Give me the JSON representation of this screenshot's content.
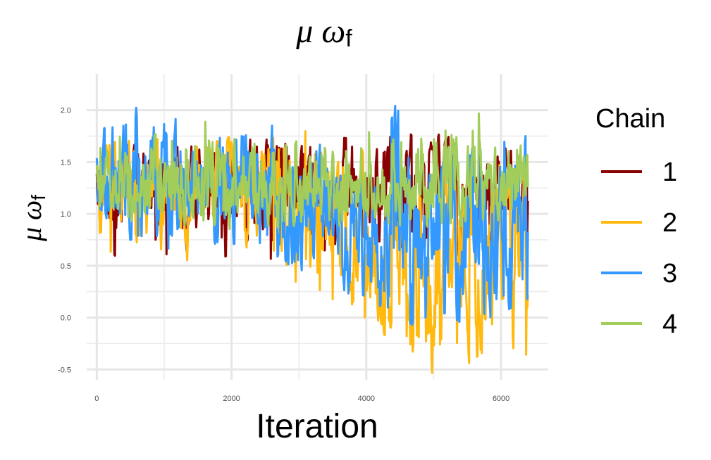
{
  "chart_data": {
    "type": "line",
    "title": {
      "main": "μ ω",
      "sub": "f"
    },
    "xlabel": "Iteration",
    "ylabel": {
      "main": "μ ω",
      "sub": "f"
    },
    "xlim": [
      -150,
      6700
    ],
    "ylim": [
      -0.6,
      2.35
    ],
    "x_ticks": [
      {
        "value": 0,
        "label": "0"
      },
      {
        "value": 2000,
        "label": "2000"
      },
      {
        "value": 4000,
        "label": "4000"
      },
      {
        "value": 6000,
        "label": "6000"
      }
    ],
    "y_ticks": [
      {
        "value": -0.5,
        "label": "-0.5"
      },
      {
        "value": 0.0,
        "label": "0.0"
      },
      {
        "value": 0.5,
        "label": "0.5"
      },
      {
        "value": 1.0,
        "label": "1.0"
      },
      {
        "value": 1.5,
        "label": "1.5"
      },
      {
        "value": 2.0,
        "label": "2.0"
      }
    ],
    "grid": true,
    "legend": {
      "title": "Chain",
      "position": "right"
    },
    "series": [
      {
        "name": "1",
        "color": "#8b0000",
        "x": [
          0,
          200,
          400,
          600,
          800,
          1000,
          1200,
          1400,
          1600,
          1800,
          2000,
          2200,
          2400,
          2600,
          2800,
          3000,
          3200,
          3400,
          3600,
          3800,
          4000,
          4200,
          4400,
          4600,
          4800,
          5000,
          5200,
          5400,
          5600,
          5800,
          6000,
          6200,
          6400
        ],
        "mid": [
          1.25,
          1.24,
          1.23,
          1.24,
          1.22,
          1.25,
          1.23,
          1.24,
          1.25,
          1.23,
          1.24,
          1.22,
          1.23,
          1.24,
          1.25,
          1.24,
          1.23,
          1.22,
          1.24,
          1.25,
          1.23,
          1.24,
          1.25,
          1.24,
          1.26,
          1.25,
          1.24,
          1.25,
          1.26,
          1.24,
          1.25,
          1.24,
          1.25
        ],
        "lo": [
          0.85,
          0.45,
          0.6,
          0.55,
          0.65,
          0.6,
          0.25,
          0.6,
          0.65,
          0.55,
          0.62,
          0.6,
          0.62,
          0.55,
          0.62,
          0.6,
          0.62,
          0.65,
          0.55,
          0.5,
          0.6,
          0.65,
          0.62,
          0.6,
          0.62,
          0.6,
          0.62,
          0.6,
          0.62,
          0.6,
          0.62,
          0.65,
          0.6
        ],
        "hi": [
          1.7,
          1.72,
          1.7,
          1.72,
          1.72,
          1.7,
          1.7,
          1.68,
          1.72,
          1.7,
          1.72,
          1.7,
          1.74,
          1.7,
          1.72,
          1.7,
          1.72,
          1.72,
          1.74,
          1.72,
          1.72,
          1.74,
          1.76,
          1.76,
          1.78,
          1.78,
          1.74,
          1.76,
          1.78,
          1.76,
          1.76,
          1.78,
          1.8
        ]
      },
      {
        "name": "2",
        "color": "#ffb90f",
        "x": [
          0,
          200,
          400,
          600,
          800,
          1000,
          1200,
          1400,
          1600,
          1800,
          2000,
          2200,
          2400,
          2600,
          2800,
          3000,
          3200,
          3400,
          3600,
          3800,
          4000,
          4200,
          4400,
          4600,
          4800,
          5000,
          5200,
          5400,
          5600,
          5800,
          6000,
          6200,
          6400
        ],
        "mid": [
          1.25,
          1.22,
          1.2,
          1.2,
          1.18,
          1.2,
          1.18,
          1.2,
          1.2,
          1.18,
          1.2,
          1.18,
          1.15,
          1.1,
          1.05,
          1.0,
          0.95,
          0.9,
          0.85,
          0.75,
          0.65,
          0.55,
          0.55,
          0.5,
          0.45,
          0.45,
          0.5,
          0.55,
          0.5,
          0.5,
          0.55,
          0.55,
          0.55
        ],
        "lo": [
          0.55,
          0.6,
          0.6,
          0.55,
          0.55,
          0.6,
          0.28,
          0.6,
          0.55,
          0.55,
          0.6,
          0.58,
          0.5,
          0.38,
          0.35,
          0.2,
          0.25,
          0.2,
          0.1,
          -0.05,
          -0.1,
          -0.15,
          -0.2,
          -0.35,
          -0.4,
          -0.55,
          -0.45,
          -0.5,
          -0.4,
          -0.3,
          -0.25,
          -0.3,
          -0.4
        ],
        "hi": [
          1.7,
          1.72,
          1.72,
          1.7,
          1.72,
          1.72,
          1.7,
          1.72,
          1.72,
          1.7,
          1.75,
          1.72,
          1.72,
          1.75,
          1.8,
          1.78,
          1.98,
          1.75,
          1.7,
          1.65,
          1.6,
          1.6,
          1.55,
          1.55,
          1.55,
          1.6,
          1.55,
          1.55,
          1.55,
          1.55,
          1.55,
          1.55,
          1.55
        ]
      },
      {
        "name": "3",
        "color": "#3399ff",
        "x": [
          0,
          200,
          400,
          600,
          800,
          1000,
          1200,
          1400,
          1600,
          1800,
          2000,
          2200,
          2400,
          2600,
          2800,
          3000,
          3200,
          3400,
          3600,
          3800,
          4000,
          4200,
          4400,
          4600,
          4800,
          5000,
          5200,
          5400,
          5600,
          5800,
          6000,
          6200,
          6400
        ],
        "mid": [
          1.3,
          1.3,
          1.3,
          1.28,
          1.3,
          1.3,
          1.28,
          1.3,
          1.28,
          1.28,
          1.3,
          1.28,
          1.25,
          1.2,
          1.1,
          1.0,
          0.95,
          0.9,
          0.85,
          0.85,
          0.8,
          0.8,
          0.8,
          0.75,
          0.75,
          0.8,
          0.8,
          0.75,
          0.8,
          0.75,
          0.8,
          0.8,
          0.75
        ],
        "lo": [
          0.8,
          0.8,
          0.75,
          0.75,
          0.8,
          0.3,
          0.7,
          0.75,
          0.75,
          0.7,
          0.7,
          0.75,
          0.7,
          0.6,
          0.5,
          0.4,
          0.4,
          0.35,
          0.3,
          0.2,
          0.15,
          0.1,
          0.05,
          -0.05,
          -0.1,
          0.0,
          0.05,
          -0.05,
          0.0,
          -0.1,
          0.05,
          0.1,
          0.0
        ],
        "hi": [
          1.8,
          1.9,
          1.95,
          2.05,
          1.85,
          1.9,
          1.95,
          1.9,
          1.85,
          1.9,
          2.07,
          1.95,
          1.9,
          1.85,
          1.8,
          1.75,
          1.7,
          1.7,
          1.72,
          1.75,
          1.8,
          1.85,
          2.28,
          1.9,
          1.75,
          1.75,
          1.8,
          1.75,
          1.8,
          1.75,
          1.75,
          1.75,
          1.75
        ]
      },
      {
        "name": "4",
        "color": "#a2cd5a",
        "x": [
          0,
          200,
          400,
          600,
          800,
          1000,
          1200,
          1400,
          1600,
          1800,
          2000,
          2200,
          2400,
          2600,
          2800,
          3000,
          3200,
          3400,
          3600,
          3800,
          4000,
          4200,
          4400,
          4600,
          4800,
          5000,
          5200,
          5400,
          5600,
          5800,
          6000,
          6200,
          6400
        ],
        "mid": [
          1.25,
          1.25,
          1.24,
          1.26,
          1.25,
          1.24,
          1.25,
          1.26,
          1.25,
          1.24,
          1.25,
          1.24,
          1.26,
          1.25,
          1.24,
          1.25,
          1.26,
          1.25,
          1.24,
          1.25,
          1.26,
          1.25,
          1.24,
          1.25,
          1.26,
          1.25,
          1.24,
          1.25,
          1.26,
          1.25,
          1.24,
          1.25,
          1.24
        ],
        "lo": [
          0.9,
          0.85,
          0.9,
          0.95,
          0.9,
          0.88,
          0.85,
          0.9,
          0.92,
          0.88,
          0.85,
          0.88,
          0.9,
          0.88,
          0.85,
          0.9,
          0.92,
          0.88,
          0.85,
          0.9,
          0.95,
          0.92,
          0.9,
          0.88,
          0.85,
          0.9,
          0.92,
          0.88,
          0.9,
          0.95,
          0.92,
          0.9,
          0.88
        ],
        "hi": [
          1.7,
          1.85,
          1.75,
          1.8,
          1.78,
          1.75,
          1.8,
          1.72,
          1.9,
          1.75,
          1.78,
          1.8,
          1.85,
          1.75,
          1.8,
          1.78,
          1.8,
          1.75,
          1.78,
          1.8,
          1.82,
          1.78,
          1.8,
          1.8,
          1.75,
          1.8,
          1.82,
          1.8,
          2.05,
          1.85,
          1.8,
          1.85,
          1.82
        ]
      }
    ]
  }
}
